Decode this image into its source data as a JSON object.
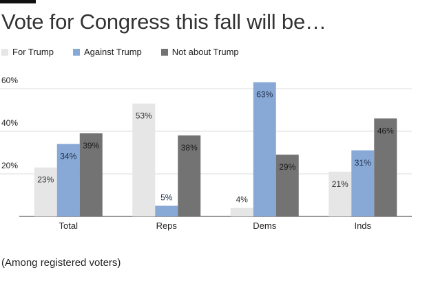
{
  "title": "Vote for Congress this fall will be…",
  "footnote": "(Among registered voters)",
  "colors": {
    "for_trump": "#e6e6e6",
    "against_trump": "#88a9d6",
    "not_about_trump": "#737373",
    "grid": "#dcdcdc",
    "axis": "#333333"
  },
  "chart_data": {
    "type": "bar",
    "title": "Vote for Congress this fall will be…",
    "categories": [
      "Total",
      "Reps",
      "Dems",
      "Inds"
    ],
    "series": [
      {
        "name": "For Trump",
        "values": [
          23,
          53,
          4,
          21
        ]
      },
      {
        "name": "Against Trump",
        "values": [
          34,
          5,
          63,
          31
        ]
      },
      {
        "name": "Not about Trump",
        "values": [
          39,
          38,
          29,
          46
        ]
      }
    ],
    "value_suffix": "%",
    "yticks": [
      "20%",
      "40%",
      "60%"
    ],
    "ylim": [
      0,
      63
    ],
    "grid": true,
    "legend": "top-left"
  }
}
